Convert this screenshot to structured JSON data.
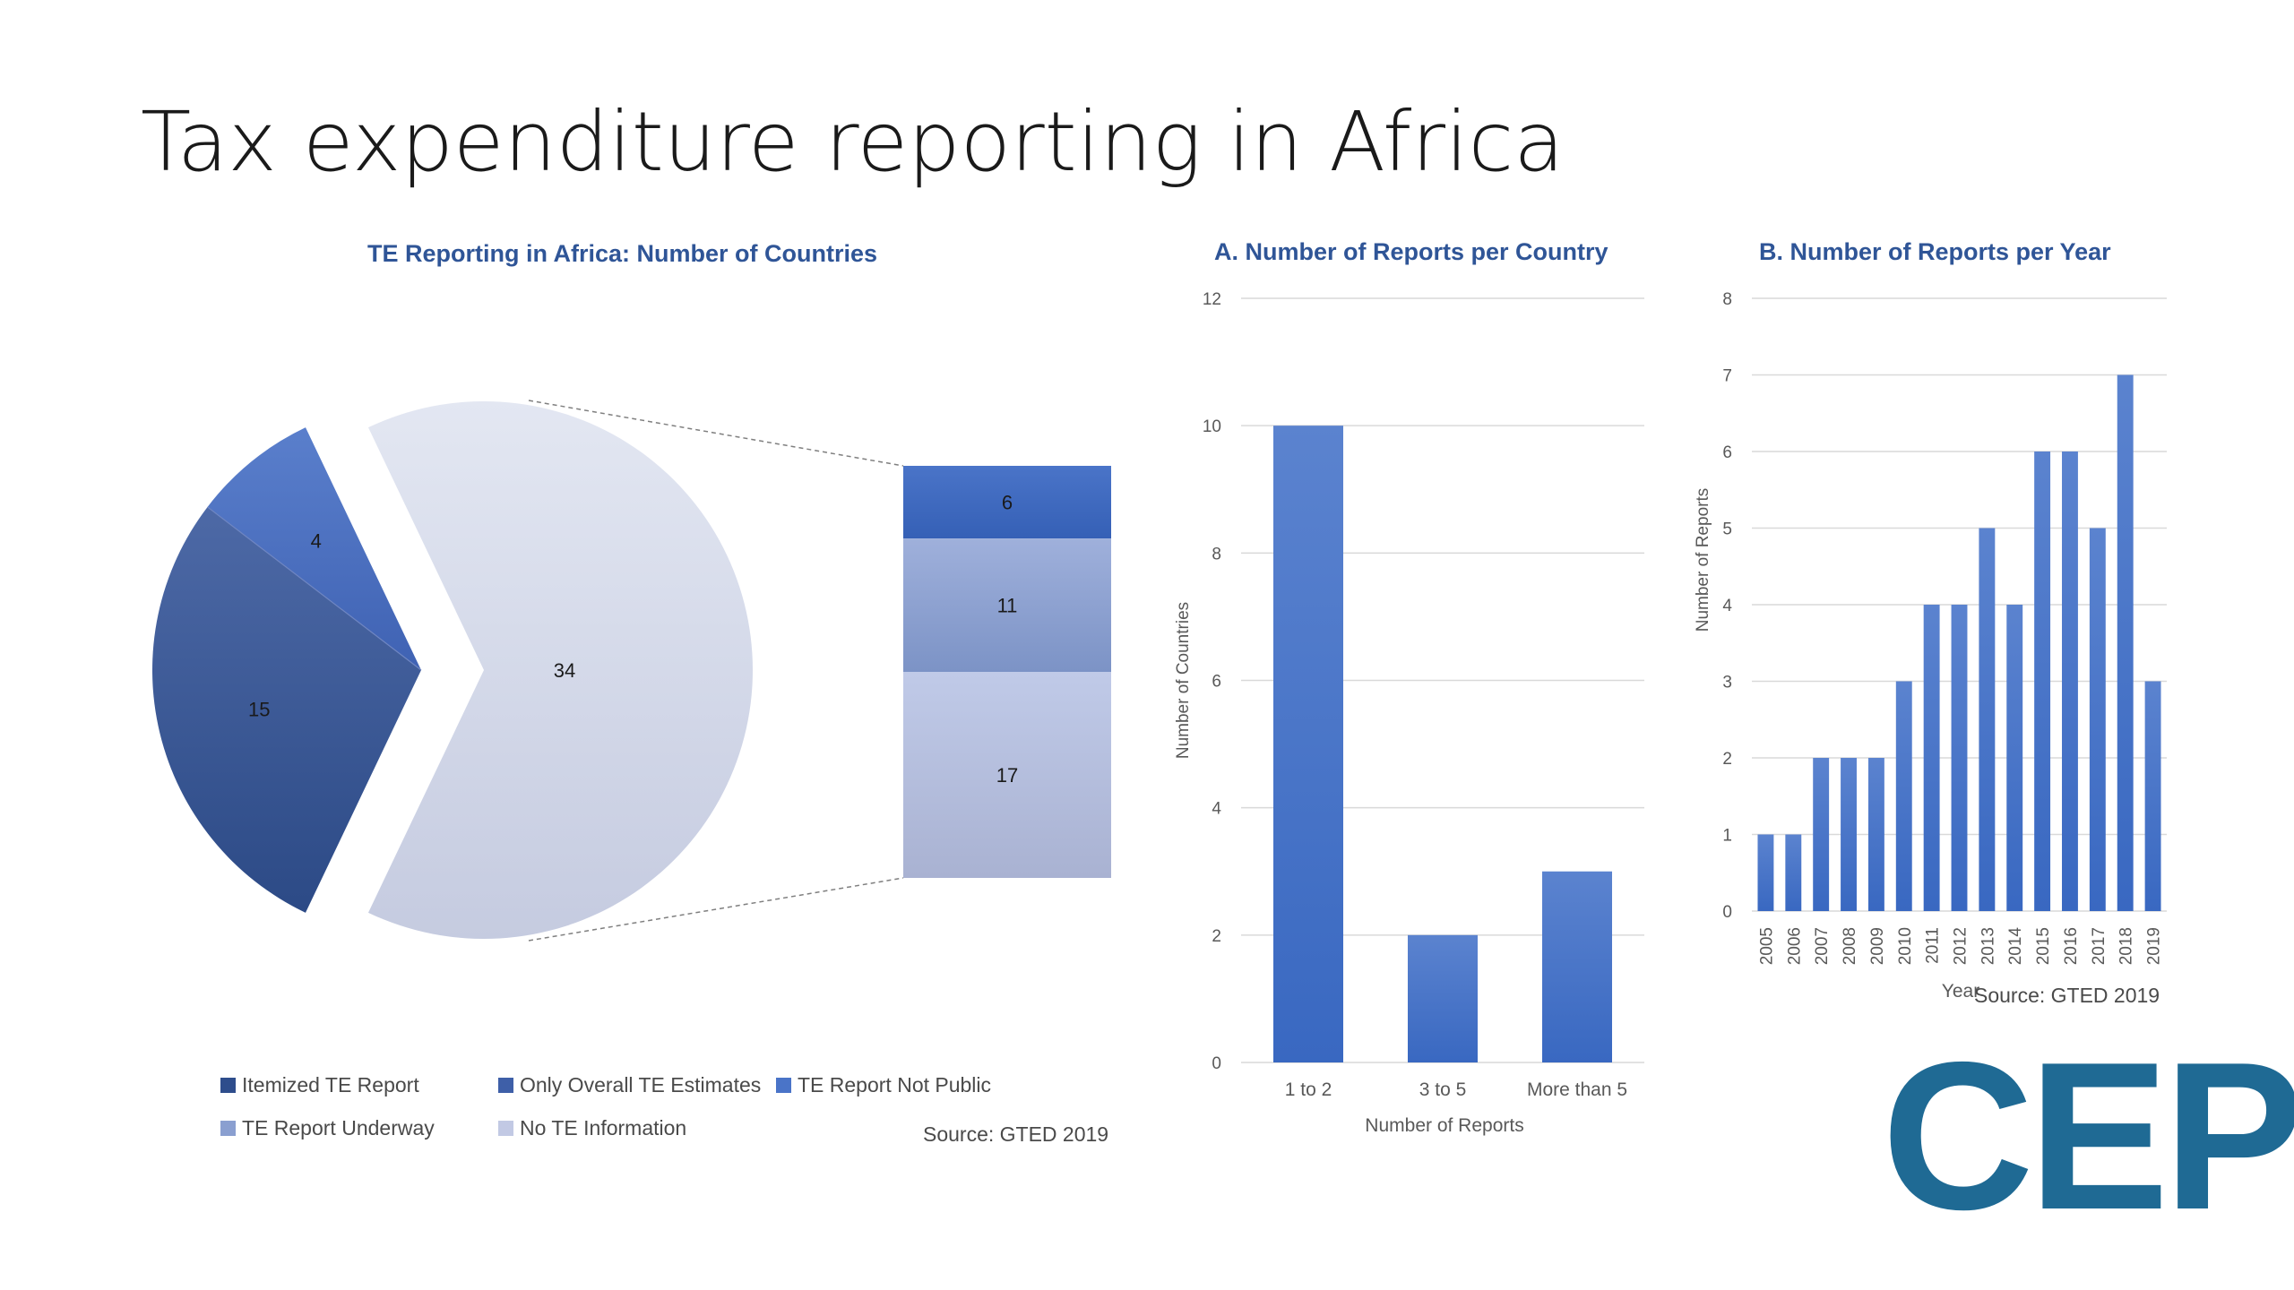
{
  "slide": {
    "title": "Tax expenditure reporting in Africa"
  },
  "colors": {
    "itemized": "#2e4d8c",
    "only_overall": "#4a6fbf",
    "not_public": "#3d6cc4",
    "underway": "#8a9fd0",
    "no_info": "#c9cfe6",
    "bars": "#4472c4",
    "title_blue": "#2f5597",
    "logo": "#1f6a94"
  },
  "chart_data": [
    {
      "type": "pie",
      "title": "TE Reporting in Africa: Number of Countries",
      "slices": [
        {
          "label": "Itemized TE Report",
          "value": 15
        },
        {
          "label": "Only Overall TE Estimates",
          "value": 4
        },
        {
          "label": "No TE Information",
          "value": 34
        }
      ],
      "breakdown": {
        "of": "No TE Information",
        "segments": [
          {
            "label": "TE Report Not Public",
            "value": 6
          },
          {
            "label": "TE Report Underway",
            "value": 11
          },
          {
            "label": "No TE Information",
            "value": 17
          }
        ]
      },
      "legend": [
        "Itemized TE Report",
        "Only Overall TE Estimates",
        "TE Report Not Public",
        "TE Report Underway",
        "No TE Information"
      ],
      "source": "Source: GTED 2019"
    },
    {
      "type": "bar",
      "title": "A. Number of Reports per Country",
      "categories": [
        "1 to 2",
        "3 to 5",
        "More than 5"
      ],
      "values": [
        10,
        2,
        3
      ],
      "xlabel": "Number of Reports",
      "ylabel": "Number of Countries",
      "ylim": [
        0,
        12
      ],
      "yticks": [
        0,
        2,
        4,
        6,
        8,
        10,
        12
      ],
      "grid": true
    },
    {
      "type": "bar",
      "title": "B. Number of Reports per Year",
      "categories": [
        "2005",
        "2006",
        "2007",
        "2008",
        "2009",
        "2010",
        "2011",
        "2012",
        "2013",
        "2014",
        "2015",
        "2016",
        "2017",
        "2018",
        "2019"
      ],
      "values": [
        1,
        1,
        2,
        2,
        2,
        3,
        4,
        4,
        5,
        4,
        6,
        6,
        5,
        7,
        3
      ],
      "xlabel": "Year",
      "ylabel": "Number of Reports",
      "ylim": [
        0,
        8
      ],
      "yticks": [
        0,
        1,
        2,
        3,
        4,
        5,
        6,
        7,
        8
      ],
      "grid": true,
      "source": "Source: GTED 2019"
    }
  ],
  "logo": {
    "text": "CEP"
  }
}
